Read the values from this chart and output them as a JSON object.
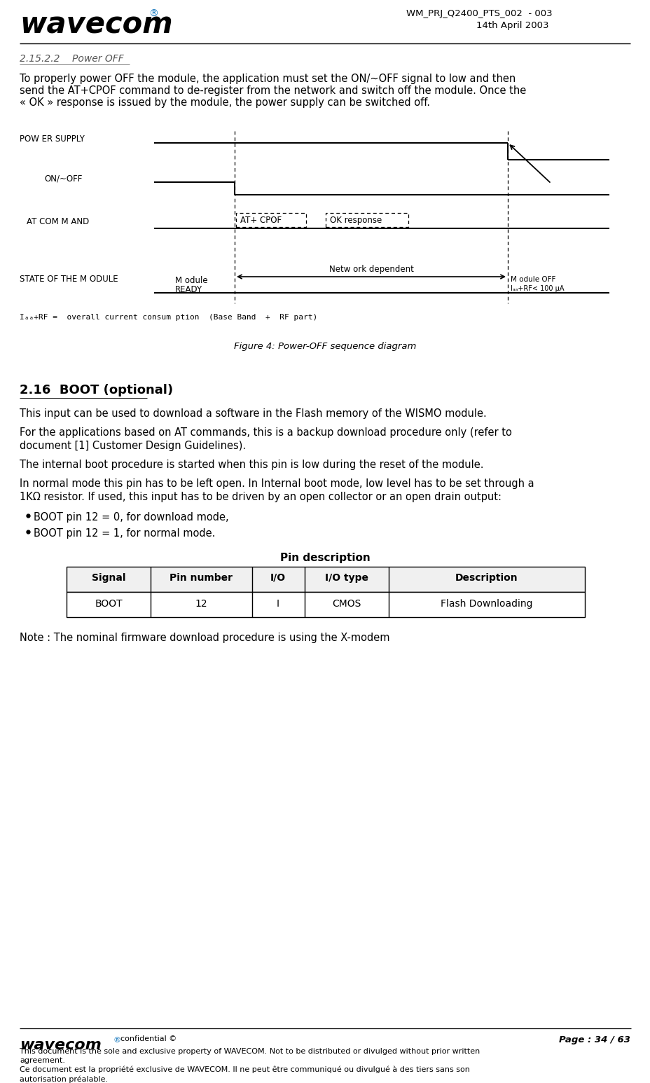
{
  "header_doc_id": "WM_PRJ_Q2400_PTS_002  - 003",
  "header_date": "14th April 2003",
  "section_title": "2.15.2.2    Power OFF",
  "section_body_l1": "To properly power OFF the module, the application must set the ON/~OFF signal to low and then",
  "section_body_l2": "send the AT+CPOF command to de-register from the network and switch off the module. Once the",
  "section_body_l3": "« OK » response is issued by the module, the power supply can be switched off.",
  "diag_label_ps": "POW ER SUPPLY",
  "diag_label_on": "ON/~OFF",
  "diag_label_at": "AT COM M AND",
  "diag_label_state": "STATE OF THE M ODULE",
  "diagram_at_cpof": "AT+ CPOF",
  "diagram_ok_response": "OK response",
  "diagram_network_dependent": "Netw ork dependent",
  "diagram_module_ready": "M odule\nREADY",
  "diagram_module_off": "M odule OFF\nIₐₐ₊ᴿ⁠< 100 µA",
  "diagram_module_off_line2": "IBB+RF< 100 µA",
  "diagram_ibb_label": "Iₐₐ+RF =  overall current consum ption  (Base Band  +  RF part)",
  "figure_caption": "Figure 4: Power-OFF sequence diagram",
  "section2_title": "2.16  BOOT (optional)",
  "section2_p1": "This input can be used to download a software in the Flash memory of the WISMO module.",
  "section2_p2a": "For the applications based on AT commands, this is a backup download procedure only (refer to",
  "section2_p2b": "document [1] Customer Design Guidelines).",
  "section2_p3": "The internal boot procedure is started when this pin is low during the reset of the module.",
  "section2_p4a": "In normal mode this pin has to be left open. In Internal boot mode, low level has to be set through a",
  "section2_p4b": "1KΩ resistor. If used, this input has to be driven by an open collector or an open drain output:",
  "bullet1": "BOOT pin 12 = 0, for download mode,",
  "bullet2": "BOOT pin 12 = 1, for normal mode.",
  "table_title": "Pin description",
  "table_headers": [
    "Signal",
    "Pin number",
    "I/O",
    "I/O type",
    "Description"
  ],
  "table_row": [
    "BOOT",
    "12",
    "I",
    "CMOS",
    "Flash Downloading"
  ],
  "note": "Note : The nominal firmware download procedure is using the X-modem",
  "footer_confidential": "confidential ©",
  "footer_page": "Page : 34 / 63",
  "footer_line1a": "This document is the sole and exclusive property of WAVECOM. Not to be distributed or divulged without prior written",
  "footer_line1b": "agreement.",
  "footer_line2a": "Ce document est la propriété exclusive de WAVECOM. Il ne peut être communiqué ou divulgué à des tiers sans son",
  "footer_line2b": "autorisation préalable.",
  "bg_color": "#ffffff"
}
